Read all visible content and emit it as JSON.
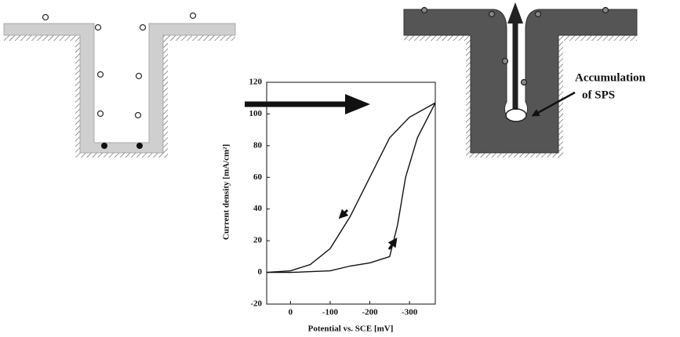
{
  "diagram": {
    "label": [
      "Accumulation",
      "of SPS"
    ]
  },
  "chart_data": {
    "type": "line",
    "x_label": "Potential vs. SCE [mV]",
    "y_label": "Current density [mA/cm²]",
    "xlim": [
      60,
      -365
    ],
    "xticks": [
      0,
      -100,
      -200,
      -300
    ],
    "ylim": [
      -20,
      120
    ],
    "yticks": [
      -20,
      0,
      20,
      40,
      60,
      80,
      100,
      120
    ],
    "series": [
      {
        "color": "#111111",
        "x": [
          60,
          0,
          -100,
          -150,
          -200,
          -250,
          -270,
          -290,
          -320,
          -365
        ],
        "values": [
          0,
          0,
          1,
          4,
          6,
          10,
          30,
          60,
          85,
          107
        ]
      },
      {
        "color": "#111111",
        "x": [
          -365,
          -300,
          -250,
          -200,
          -150,
          -100,
          -50,
          0,
          60
        ],
        "values": [
          107,
          98,
          85,
          60,
          35,
          15,
          5,
          1,
          0
        ]
      }
    ]
  }
}
